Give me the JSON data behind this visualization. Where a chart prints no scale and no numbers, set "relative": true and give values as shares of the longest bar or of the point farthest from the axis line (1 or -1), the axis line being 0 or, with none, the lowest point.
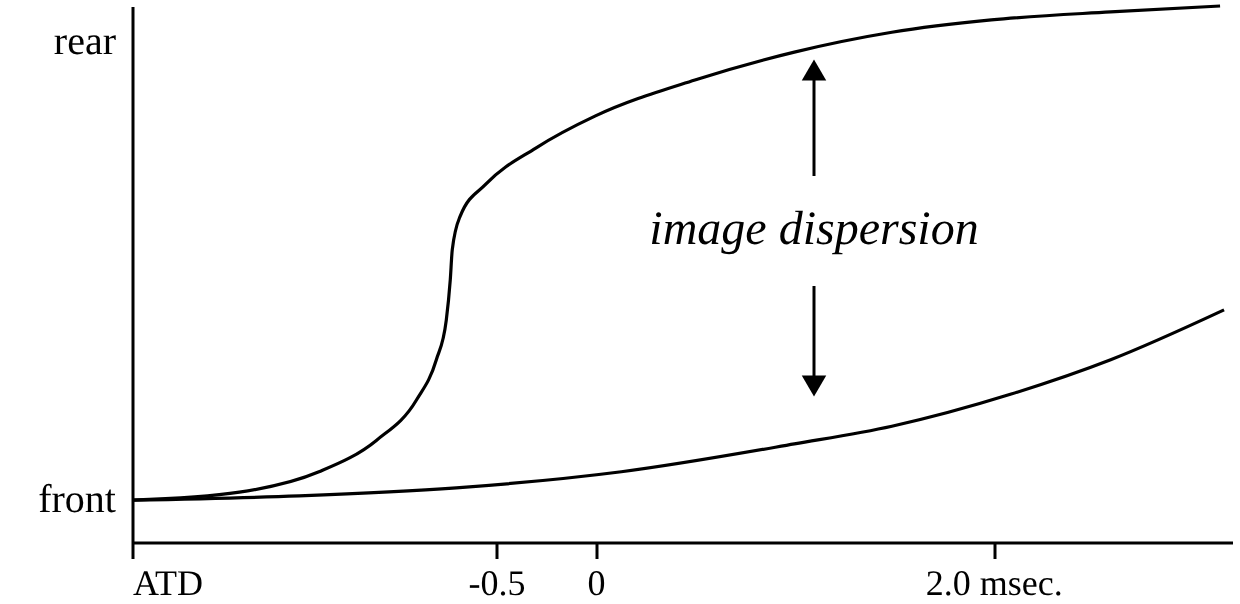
{
  "chart_data": {
    "type": "line",
    "relative": true,
    "xlim": [
      -2.33,
      3.2
    ],
    "xticks": [
      {
        "value": -2.33,
        "label": "ATD"
      },
      -0.5,
      0,
      {
        "value": 2.0,
        "label": "2.0 msec."
      }
    ],
    "grid": false,
    "marker": "none",
    "line_style": "solid",
    "annotations": [
      "rear",
      "front",
      "image dispersion"
    ],
    "series": [
      {
        "color": "#000000",
        "x": [
          -2.33,
          -1.79,
          -1.39,
          -1.1,
          -0.9,
          -0.8,
          -0.75,
          -0.73,
          -0.72,
          -0.68,
          -0.55,
          -0.3,
          0,
          0.5,
          1.0,
          1.49,
          1.99,
          2.59,
          3.14
        ],
        "values": [
          0.078,
          0.093,
          0.131,
          0.19,
          0.265,
          0.34,
          0.414,
          0.489,
          0.545,
          0.608,
          0.668,
          0.735,
          0.795,
          0.862,
          0.914,
          0.951,
          0.974,
          0.989,
          1.0
        ]
      },
      {
        "color": "#000000",
        "x": [
          -2.33,
          -1.49,
          -0.7,
          0.13,
          1.0,
          1.49,
          2.09,
          2.59,
          3.16
        ],
        "values": [
          0.078,
          0.086,
          0.101,
          0.131,
          0.183,
          0.216,
          0.276,
          0.34,
          0.433
        ]
      }
    ]
  }
}
